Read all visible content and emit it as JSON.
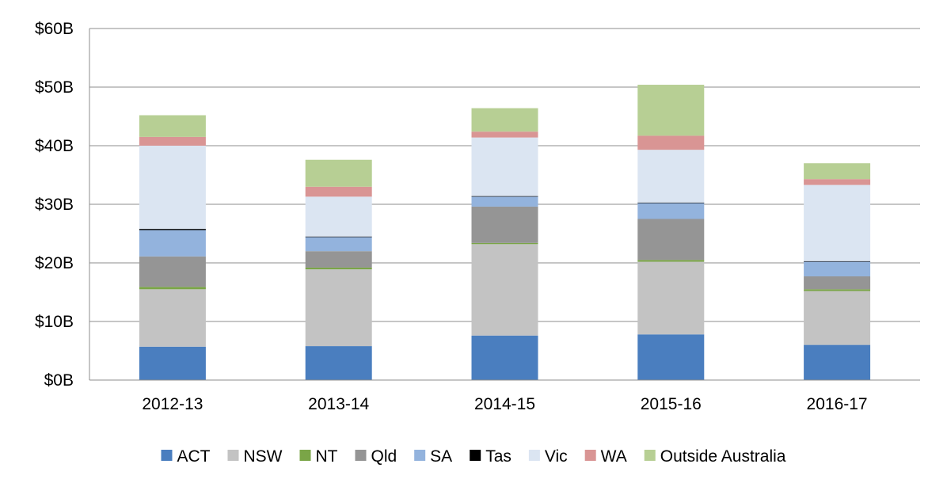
{
  "chart_data": {
    "type": "bar",
    "stacked": true,
    "title": "",
    "xlabel": "",
    "ylabel": "",
    "categories": [
      "2012-13",
      "2013-14",
      "2014-15",
      "2015-16",
      "2016-17"
    ],
    "ylim": [
      0,
      60
    ],
    "yticks": [
      0,
      10,
      20,
      30,
      40,
      50,
      60
    ],
    "ytick_labels": [
      "$0B",
      "$10B",
      "$20B",
      "$30B",
      "$40B",
      "$50B",
      "$60B"
    ],
    "grid": "horizontal",
    "legend_position": "bottom",
    "series": [
      {
        "name": "ACT",
        "color": "#4a7ebf",
        "values": [
          5.7,
          5.8,
          7.6,
          7.8,
          6.0
        ]
      },
      {
        "name": "NSW",
        "color": "#c3c3c3",
        "values": [
          9.8,
          13.1,
          15.6,
          12.4,
          9.2
        ]
      },
      {
        "name": "NT",
        "color": "#7aa547",
        "values": [
          0.4,
          0.3,
          0.2,
          0.3,
          0.3
        ]
      },
      {
        "name": "Qld",
        "color": "#959595",
        "values": [
          5.2,
          2.8,
          6.2,
          7.0,
          2.2
        ]
      },
      {
        "name": "SA",
        "color": "#93b3dd",
        "values": [
          4.5,
          2.4,
          1.7,
          2.7,
          2.5
        ]
      },
      {
        "name": "Tas",
        "color": "#000000",
        "values": [
          0.2,
          0.1,
          0.1,
          0.1,
          0.1
        ]
      },
      {
        "name": "Vic",
        "color": "#dbe5f2",
        "values": [
          14.2,
          6.8,
          10.0,
          9.0,
          13.0
        ]
      },
      {
        "name": "WA",
        "color": "#d99594",
        "values": [
          1.5,
          1.7,
          1.0,
          2.4,
          1.0
        ]
      },
      {
        "name": "Outside Australia",
        "color": "#b7cf94",
        "values": [
          3.7,
          4.6,
          4.0,
          8.7,
          2.7
        ]
      }
    ]
  }
}
